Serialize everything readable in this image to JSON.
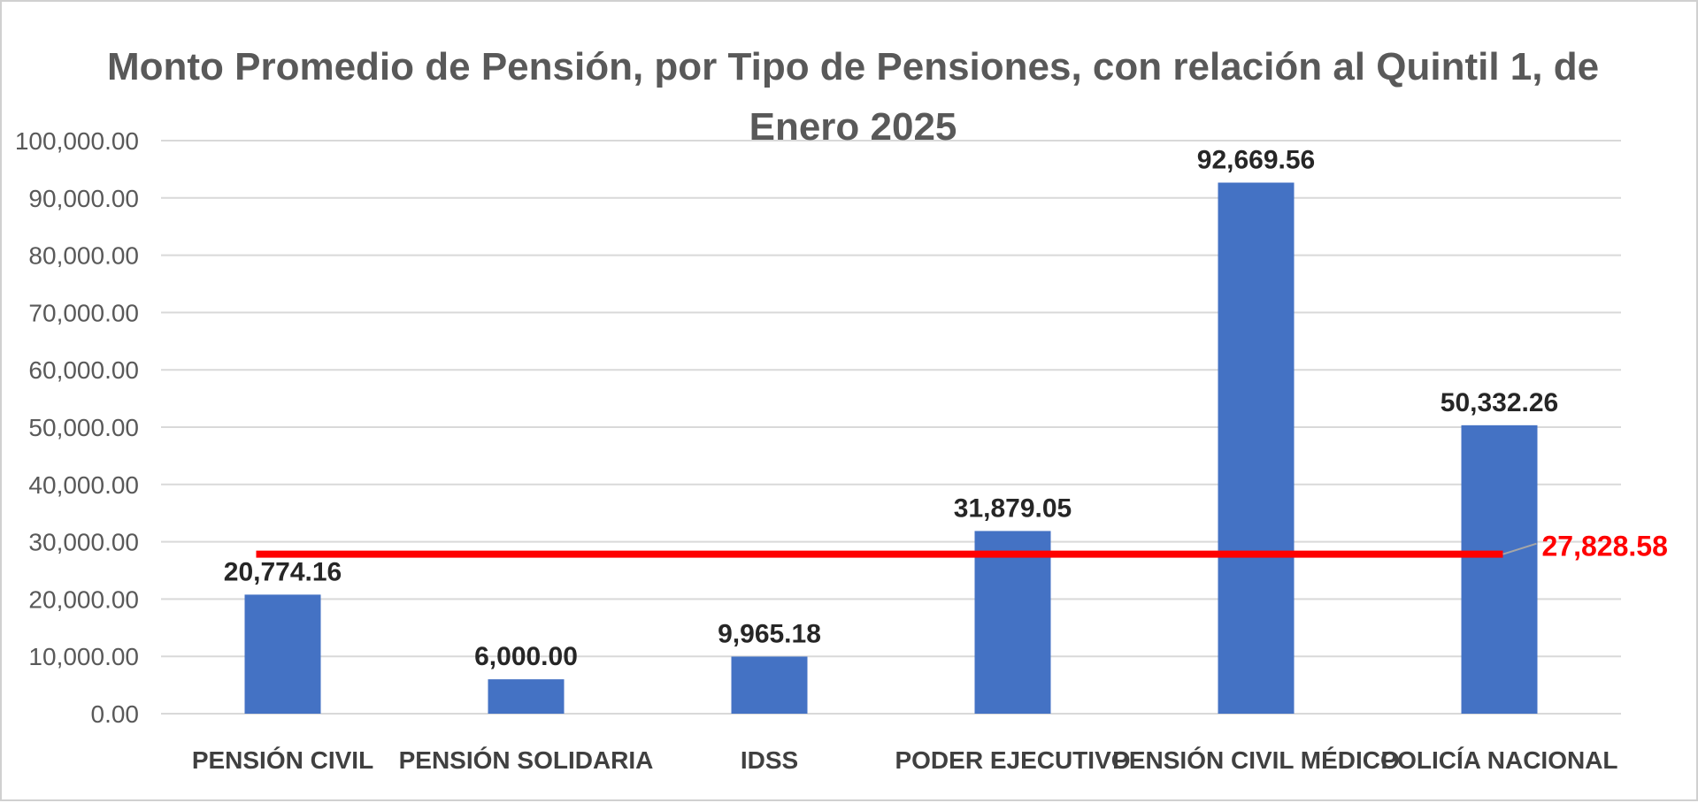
{
  "chart_data": {
    "type": "bar",
    "title_lines": [
      "Monto Promedio de Pensión, por Tipo de Pensiones, con relación al Quintil 1, de",
      "Enero 2025"
    ],
    "categories": [
      "PENSIÓN CIVIL",
      "PENSIÓN SOLIDARIA",
      "IDSS",
      "PODER EJECUTIVO",
      "PENSIÓN CIVIL MÉDICO",
      "POLICÍA NACIONAL"
    ],
    "values": [
      20774.16,
      6000.0,
      9965.18,
      31879.05,
      92669.56,
      50332.26
    ],
    "value_labels": [
      "20,774.16",
      "6,000.00",
      "9,965.18",
      "31,879.05",
      "92,669.56",
      "50,332.26"
    ],
    "reference_line": {
      "value": 27828.58,
      "label": "27,828.58",
      "color": "#ff0000"
    },
    "ylim": [
      0,
      100000
    ],
    "y_ticks": [
      0,
      10000,
      20000,
      30000,
      40000,
      50000,
      60000,
      70000,
      80000,
      90000,
      100000
    ],
    "y_tick_labels": [
      "0.00",
      "10,000.00",
      "20,000.00",
      "30,000.00",
      "40,000.00",
      "50,000.00",
      "60,000.00",
      "70,000.00",
      "80,000.00",
      "90,000.00",
      "100,000.00"
    ],
    "bar_color": "#4472c4",
    "grid": true,
    "legend": false
  }
}
